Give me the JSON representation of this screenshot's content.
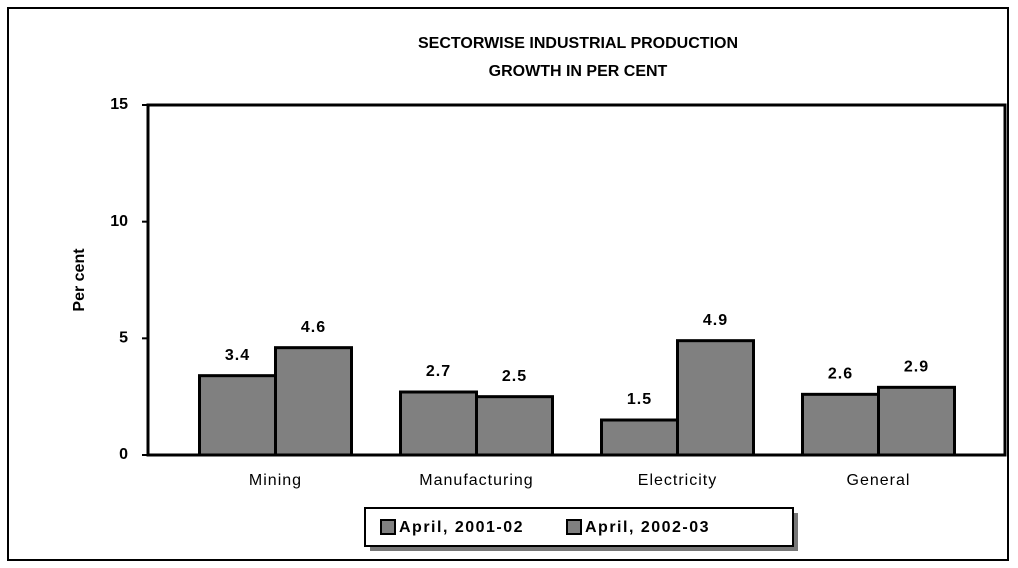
{
  "chart_data": {
    "type": "bar",
    "title": "SECTORWISE INDUSTRIAL PRODUCTION",
    "subtitle": "GROWTH IN PER CENT",
    "y_label": "Per cent",
    "categories": [
      "Mining",
      "Manufacturing",
      "Electricity",
      "General"
    ],
    "series": [
      {
        "name": "April, 2001-02",
        "color": "#808080",
        "values": [
          3.4,
          2.7,
          1.5,
          2.6
        ]
      },
      {
        "name": "April, 2002-03",
        "color": "#808080",
        "values": [
          4.6,
          2.5,
          4.9,
          2.9
        ]
      }
    ],
    "ylim": [
      0,
      15
    ],
    "yticks": [
      0,
      5,
      10,
      15
    ],
    "grid": false,
    "legend": "bottom"
  }
}
